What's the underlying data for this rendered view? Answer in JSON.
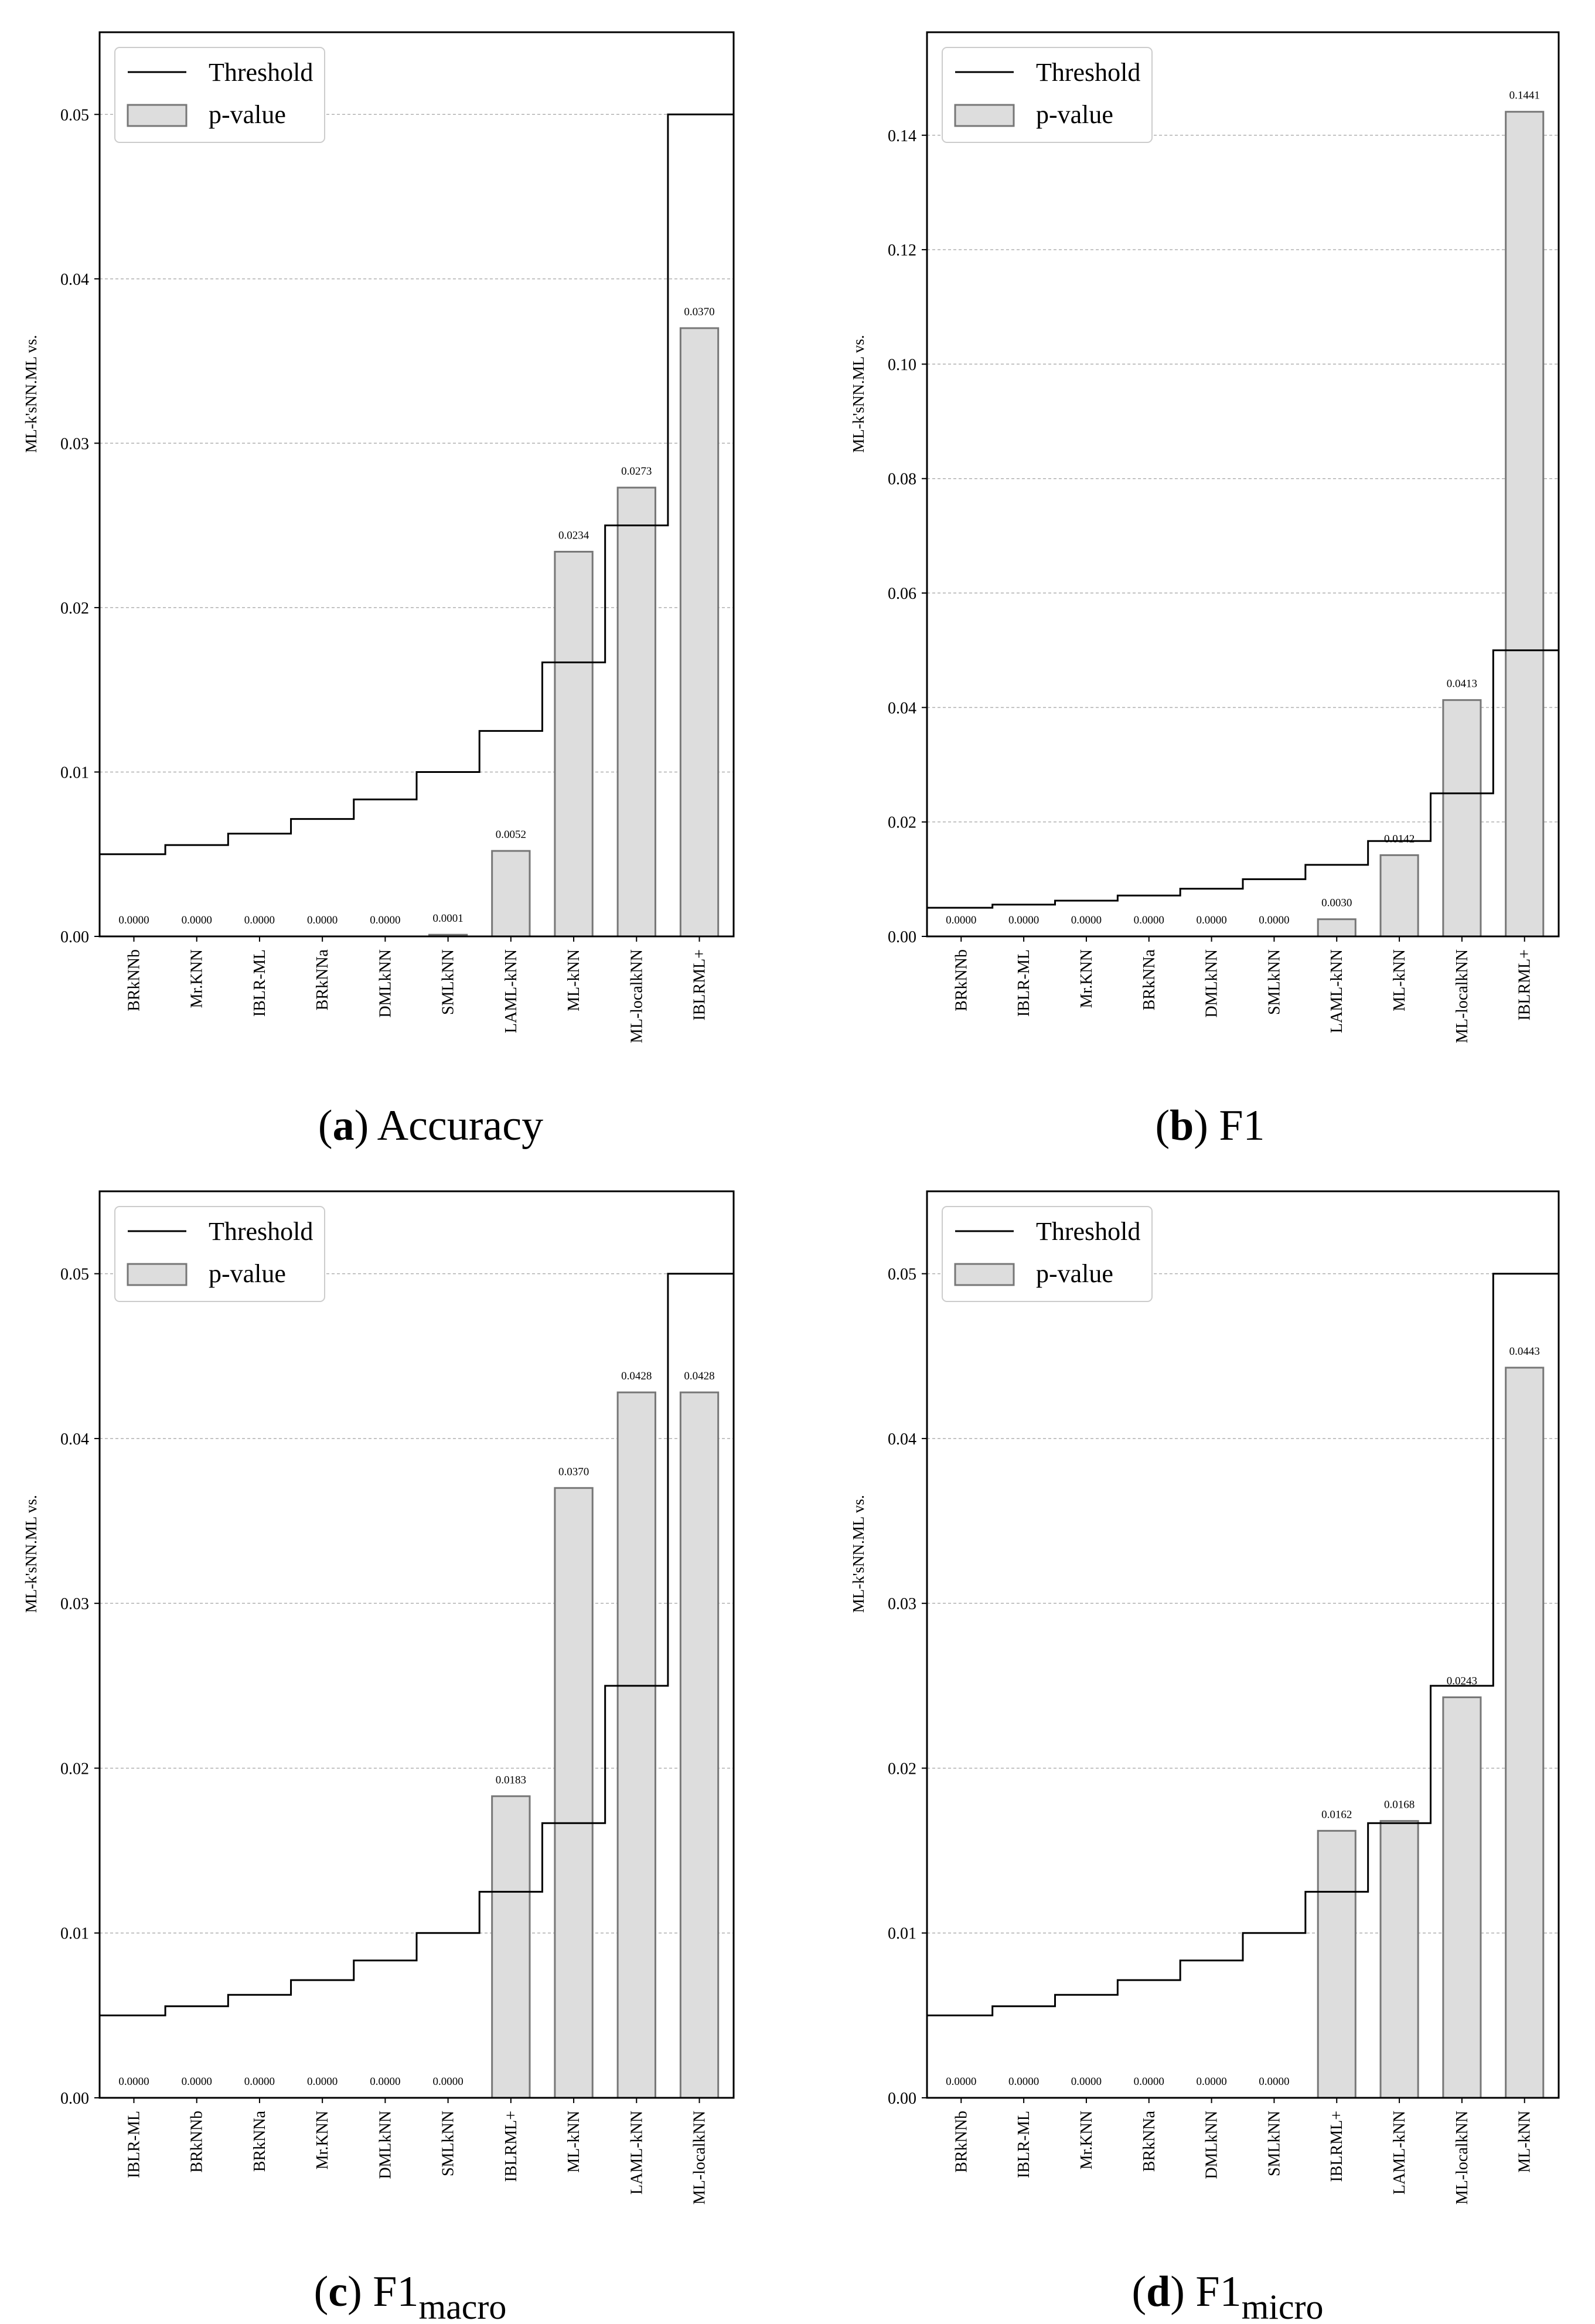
{
  "figure": {
    "colors": {
      "bar_fill": "#dddddd",
      "bar_stroke": "#777777",
      "threshold": "#000000",
      "grid": "#b0b0b0"
    },
    "legend": {
      "threshold_label": "Threshold",
      "pvalue_label": "p-value",
      "placement": "top-left"
    }
  },
  "chart_data": [
    {
      "type": "bar",
      "caption": {
        "letter": "a",
        "main": "Accuracy",
        "sub": ""
      },
      "ylabel": "ML-k'sNN.ML vs.",
      "ylim": [
        0,
        0.055
      ],
      "yticks": [
        0.0,
        0.01,
        0.02,
        0.03,
        0.04,
        0.05
      ],
      "ytick_labels": [
        "0.00",
        "0.01",
        "0.02",
        "0.03",
        "0.04",
        "0.05"
      ],
      "categories": [
        "BRkNNb",
        "Mr.KNN",
        "IBLR-ML",
        "BRkNNa",
        "DMLkNN",
        "SMLkNN",
        "LAML-kNN",
        "ML-kNN",
        "ML-localkNN",
        "IBLRML+"
      ],
      "values": [
        0.0,
        0.0,
        0.0,
        0.0,
        0.0,
        0.0001,
        0.0052,
        0.0234,
        0.0273,
        0.037
      ],
      "value_labels": [
        "0.0000",
        "0.0000",
        "0.0000",
        "0.0000",
        "0.0000",
        "0.0001",
        "0.0052",
        "0.0234",
        "0.0273",
        "0.0370"
      ],
      "threshold": [
        0.005,
        0.005556,
        0.00625,
        0.007143,
        0.008333,
        0.01,
        0.0125,
        0.016667,
        0.025,
        0.05
      ]
    },
    {
      "type": "bar",
      "caption": {
        "letter": "b",
        "main": "F1",
        "sub": ""
      },
      "ylabel": "ML-k'sNN.ML vs.",
      "ylim": [
        0,
        0.158
      ],
      "yticks": [
        0.0,
        0.02,
        0.04,
        0.06,
        0.08,
        0.1,
        0.12,
        0.14
      ],
      "ytick_labels": [
        "0.00",
        "0.02",
        "0.04",
        "0.06",
        "0.08",
        "0.10",
        "0.12",
        "0.14"
      ],
      "categories": [
        "BRkNNb",
        "IBLR-ML",
        "Mr.KNN",
        "BRkNNa",
        "DMLkNN",
        "SMLkNN",
        "LAML-kNN",
        "ML-kNN",
        "ML-localkNN",
        "IBLRML+"
      ],
      "values": [
        0.0,
        0.0,
        0.0,
        0.0,
        0.0,
        0.0,
        0.003,
        0.0142,
        0.0413,
        0.1441
      ],
      "value_labels": [
        "0.0000",
        "0.0000",
        "0.0000",
        "0.0000",
        "0.0000",
        "0.0000",
        "0.0030",
        "0.0142",
        "0.0413",
        "0.1441"
      ],
      "threshold": [
        0.005,
        0.005556,
        0.00625,
        0.007143,
        0.008333,
        0.01,
        0.0125,
        0.016667,
        0.025,
        0.05
      ]
    },
    {
      "type": "bar",
      "caption": {
        "letter": "c",
        "main": "F1",
        "sub": "macro"
      },
      "ylabel": "ML-k'sNN.ML vs.",
      "ylim": [
        0,
        0.055
      ],
      "yticks": [
        0.0,
        0.01,
        0.02,
        0.03,
        0.04,
        0.05
      ],
      "ytick_labels": [
        "0.00",
        "0.01",
        "0.02",
        "0.03",
        "0.04",
        "0.05"
      ],
      "categories": [
        "IBLR-ML",
        "BRkNNb",
        "BRkNNa",
        "Mr.KNN",
        "DMLkNN",
        "SMLkNN",
        "IBLRML+",
        "ML-kNN",
        "LAML-kNN",
        "ML-localkNN"
      ],
      "values": [
        0.0,
        0.0,
        0.0,
        0.0,
        0.0,
        0.0,
        0.0183,
        0.037,
        0.0428,
        0.0428
      ],
      "value_labels": [
        "0.0000",
        "0.0000",
        "0.0000",
        "0.0000",
        "0.0000",
        "0.0000",
        "0.0183",
        "0.0370",
        "0.0428",
        "0.0428"
      ],
      "threshold": [
        0.005,
        0.005556,
        0.00625,
        0.007143,
        0.008333,
        0.01,
        0.0125,
        0.016667,
        0.025,
        0.05
      ]
    },
    {
      "type": "bar",
      "caption": {
        "letter": "d",
        "main": "F1",
        "sub": "micro"
      },
      "ylabel": "ML-k'sNN.ML vs.",
      "ylim": [
        0,
        0.055
      ],
      "yticks": [
        0.0,
        0.01,
        0.02,
        0.03,
        0.04,
        0.05
      ],
      "ytick_labels": [
        "0.00",
        "0.01",
        "0.02",
        "0.03",
        "0.04",
        "0.05"
      ],
      "categories": [
        "BRkNNb",
        "IBLR-ML",
        "Mr.KNN",
        "BRkNNa",
        "DMLkNN",
        "SMLkNN",
        "IBLRML+",
        "LAML-kNN",
        "ML-localkNN",
        "ML-kNN"
      ],
      "values": [
        0.0,
        0.0,
        0.0,
        0.0,
        0.0,
        0.0,
        0.0162,
        0.0168,
        0.0243,
        0.0443
      ],
      "value_labels": [
        "0.0000",
        "0.0000",
        "0.0000",
        "0.0000",
        "0.0000",
        "0.0000",
        "0.0162",
        "0.0168",
        "0.0243",
        "0.0443"
      ],
      "threshold": [
        0.005,
        0.005556,
        0.00625,
        0.007143,
        0.008333,
        0.01,
        0.0125,
        0.016667,
        0.025,
        0.05
      ]
    }
  ]
}
